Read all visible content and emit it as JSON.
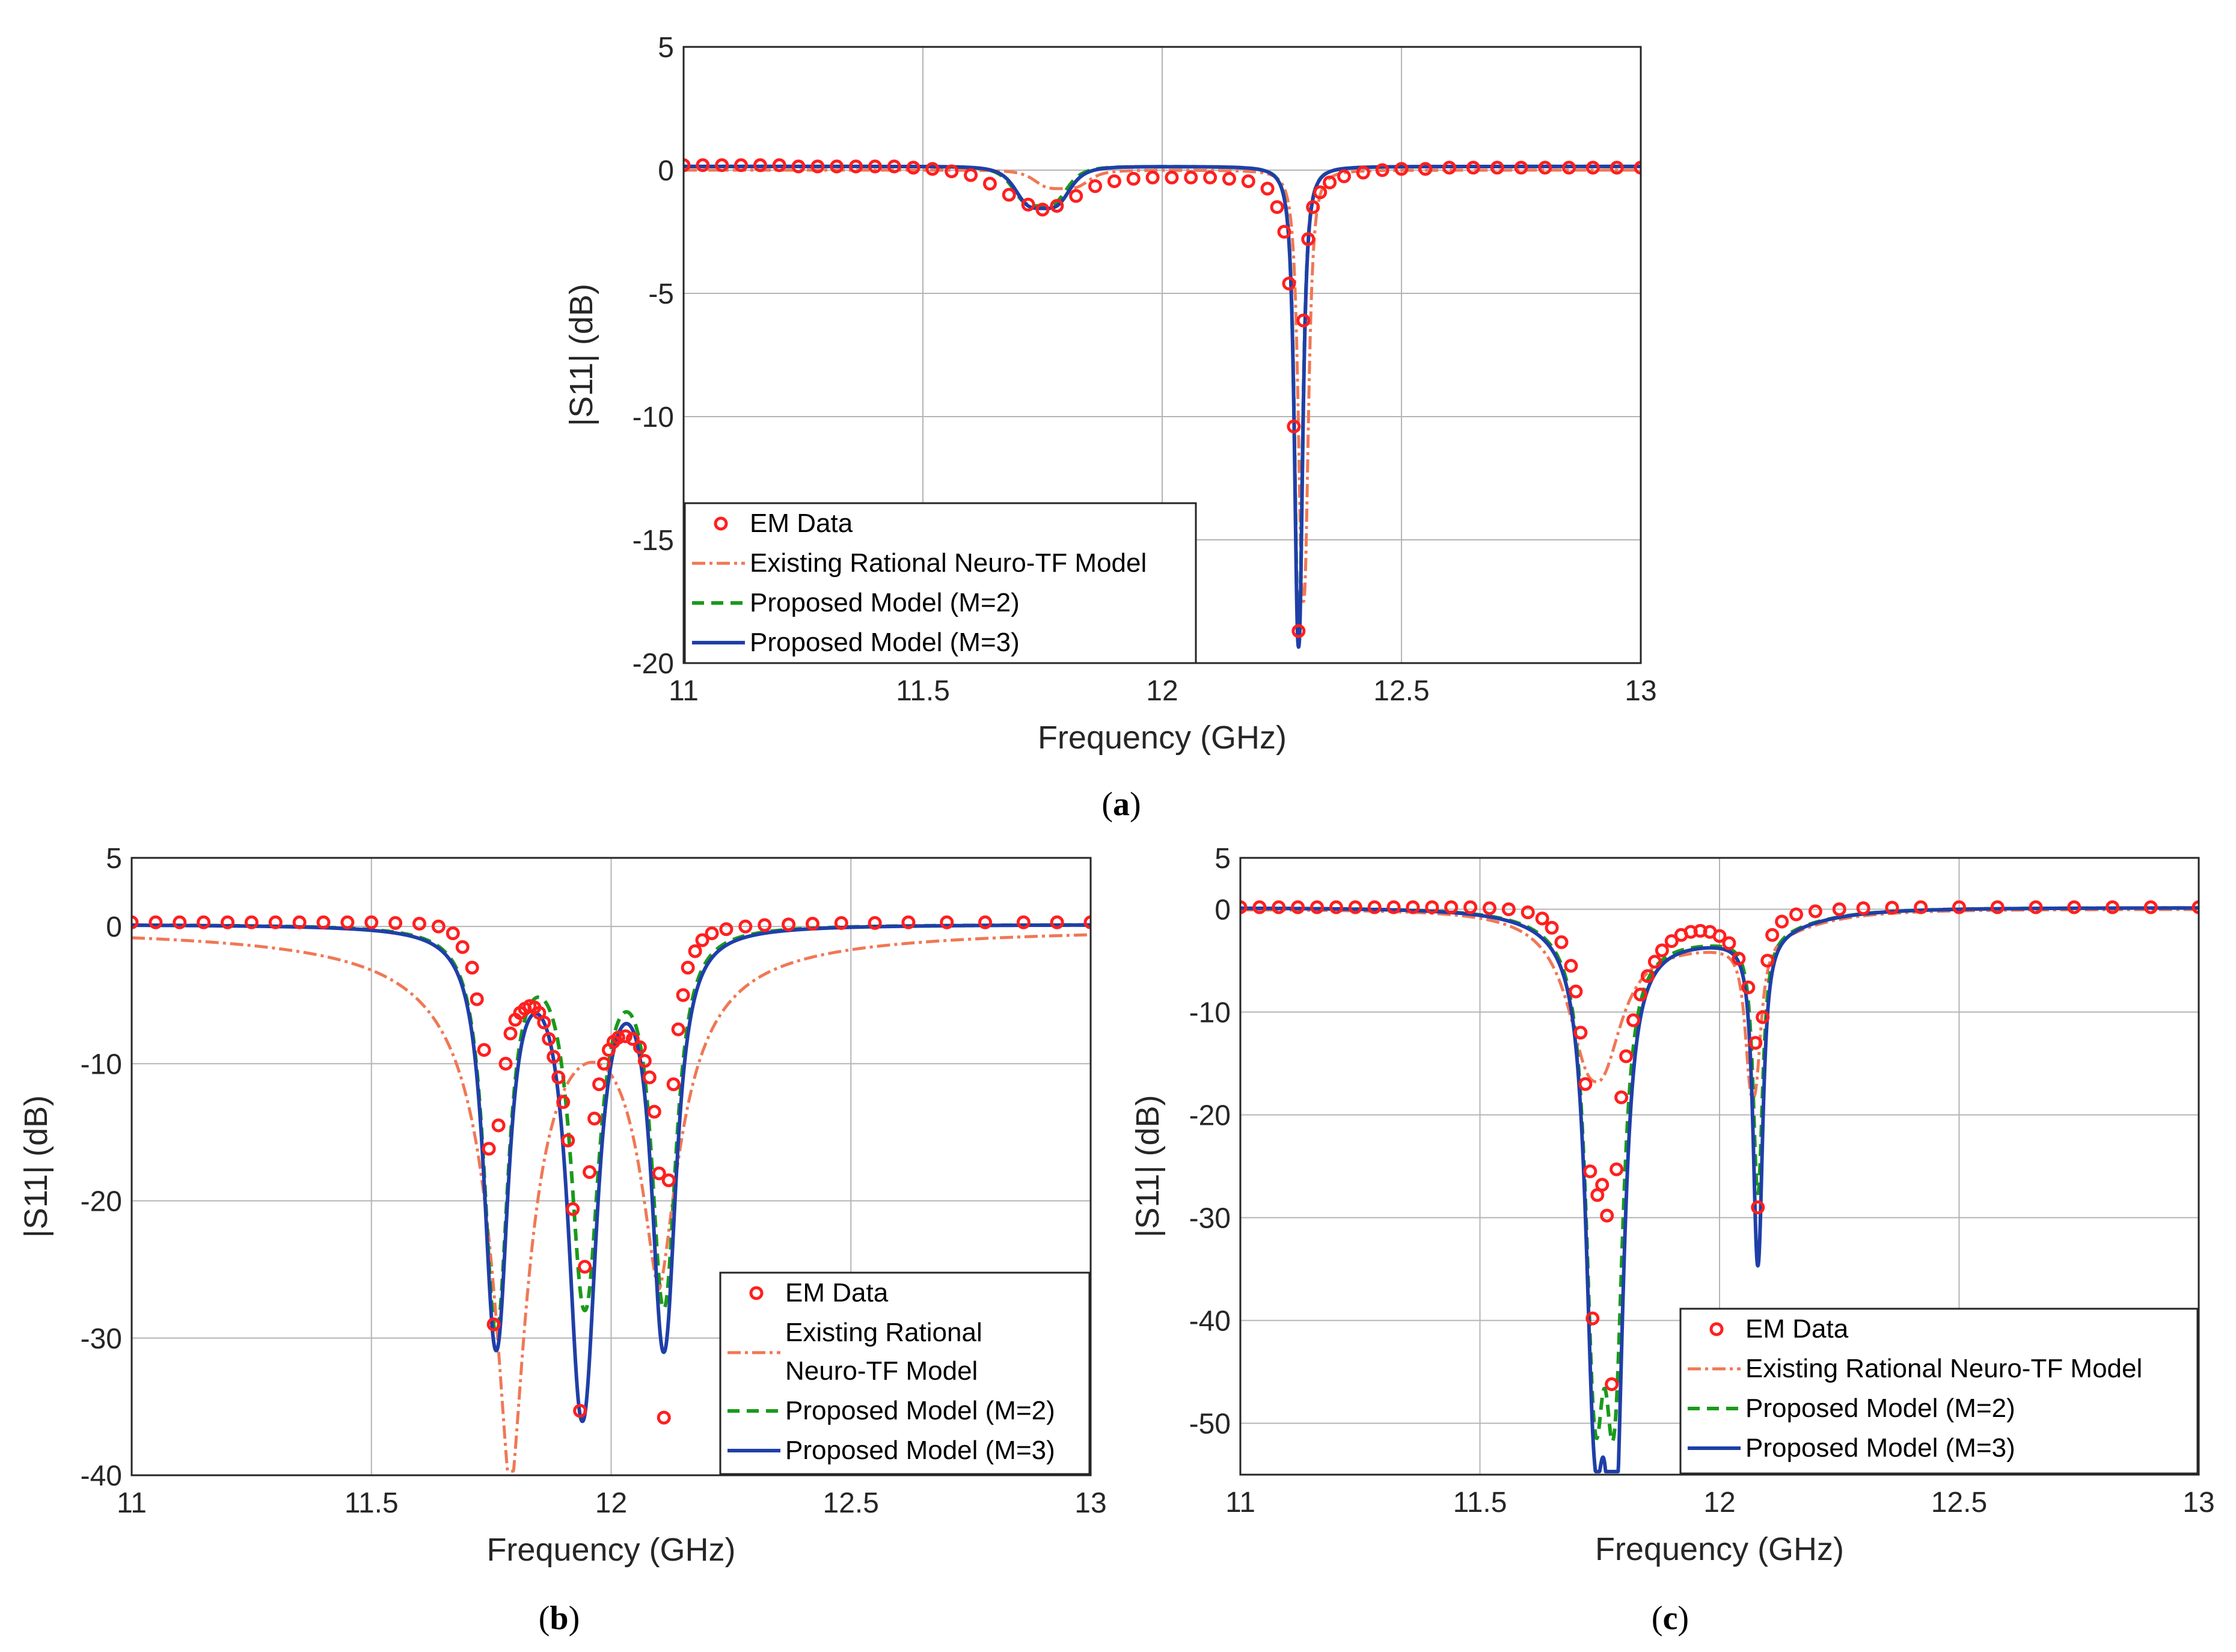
{
  "colors": {
    "em": "#ff1f1f",
    "existing": "#f07855",
    "m2": "#1a9a1a",
    "m3": "#1f3fa8",
    "grid": "#b4b4b4",
    "axis": "#262626"
  },
  "chart_data": [
    {
      "id": "a",
      "type": "line",
      "caption": "(a)",
      "xlabel": "Frequency (GHz)",
      "ylabel": "|S11| (dB)",
      "xlim": [
        11,
        13
      ],
      "ylim": [
        -20,
        5
      ],
      "xticks": [
        11,
        11.5,
        12,
        12.5,
        13
      ],
      "xtick_labels": [
        "11",
        "11.5",
        "12",
        "12.5",
        "13"
      ],
      "yticks": [
        -20,
        -15,
        -10,
        -5,
        0,
        5
      ],
      "ytick_labels": [
        "-20",
        "-15",
        "-10",
        "-5",
        "0",
        "5"
      ],
      "grid": true,
      "legend_position": "bottom-left",
      "legend": [
        {
          "key": "em",
          "lines": [
            "EM Data"
          ]
        },
        {
          "key": "existing",
          "lines": [
            "Existing Rational Neuro-TF Model"
          ]
        },
        {
          "key": "m2",
          "lines": [
            "Proposed Model (M=2)"
          ]
        },
        {
          "key": "m3",
          "lines": [
            "Proposed Model (M=3)"
          ]
        }
      ],
      "dips": {
        "true": [
          {
            "f": 11.75,
            "depth": -1.7,
            "w": 0.06,
            "p": 2
          },
          {
            "f": 12.285,
            "depth": -19.2,
            "w": 0.01,
            "p": 1.2
          }
        ],
        "existing": [
          {
            "f": 11.79,
            "depth": -0.75,
            "w": 0.06,
            "p": 2
          },
          {
            "f": 12.295,
            "depth": -17.5,
            "w": 0.012,
            "p": 1.3
          }
        ],
        "m2": [
          {
            "f": 11.745,
            "depth": -1.6,
            "w": 0.06,
            "p": 2
          },
          {
            "f": 12.285,
            "depth": -19.0,
            "w": 0.01,
            "p": 1.2
          }
        ],
        "m3": [
          {
            "f": 11.75,
            "depth": -1.7,
            "w": 0.06,
            "p": 2
          },
          {
            "f": 12.285,
            "depth": -19.5,
            "w": 0.01,
            "p": 1.2
          }
        ]
      },
      "em_points": [
        [
          11.0,
          0.2
        ],
        [
          11.04,
          0.2
        ],
        [
          11.08,
          0.2
        ],
        [
          11.12,
          0.2
        ],
        [
          11.16,
          0.2
        ],
        [
          11.2,
          0.2
        ],
        [
          11.24,
          0.15
        ],
        [
          11.28,
          0.15
        ],
        [
          11.32,
          0.15
        ],
        [
          11.36,
          0.15
        ],
        [
          11.4,
          0.15
        ],
        [
          11.44,
          0.15
        ],
        [
          11.48,
          0.1
        ],
        [
          11.52,
          0.05
        ],
        [
          11.56,
          -0.05
        ],
        [
          11.6,
          -0.2
        ],
        [
          11.64,
          -0.55
        ],
        [
          11.68,
          -1.0
        ],
        [
          11.72,
          -1.4
        ],
        [
          11.75,
          -1.6
        ],
        [
          11.78,
          -1.45
        ],
        [
          11.82,
          -1.05
        ],
        [
          11.86,
          -0.65
        ],
        [
          11.9,
          -0.45
        ],
        [
          11.94,
          -0.35
        ],
        [
          11.98,
          -0.3
        ],
        [
          12.02,
          -0.3
        ],
        [
          12.06,
          -0.3
        ],
        [
          12.1,
          -0.3
        ],
        [
          12.14,
          -0.35
        ],
        [
          12.18,
          -0.45
        ],
        [
          12.22,
          -0.75
        ],
        [
          12.24,
          -1.5
        ],
        [
          12.255,
          -2.5
        ],
        [
          12.265,
          -4.6
        ],
        [
          12.275,
          -10.4
        ],
        [
          12.285,
          -18.7
        ],
        [
          12.295,
          -6.1
        ],
        [
          12.305,
          -2.8
        ],
        [
          12.315,
          -1.5
        ],
        [
          12.33,
          -0.9
        ],
        [
          12.35,
          -0.5
        ],
        [
          12.38,
          -0.25
        ],
        [
          12.42,
          -0.1
        ],
        [
          12.46,
          0.0
        ],
        [
          12.5,
          0.05
        ],
        [
          12.55,
          0.05
        ],
        [
          12.6,
          0.1
        ],
        [
          12.65,
          0.1
        ],
        [
          12.7,
          0.1
        ],
        [
          12.75,
          0.1
        ],
        [
          12.8,
          0.1
        ],
        [
          12.85,
          0.1
        ],
        [
          12.9,
          0.1
        ],
        [
          12.95,
          0.1
        ],
        [
          13.0,
          0.1
        ]
      ]
    },
    {
      "id": "b",
      "type": "line",
      "caption": "(b)",
      "xlabel": "Frequency (GHz)",
      "ylabel": "|S11| (dB)",
      "xlim": [
        11,
        13
      ],
      "ylim": [
        -40,
        5
      ],
      "xticks": [
        11,
        11.5,
        12,
        12.5,
        13
      ],
      "xtick_labels": [
        "11",
        "11.5",
        "12",
        "12.5",
        "13"
      ],
      "yticks": [
        -40,
        -30,
        -20,
        -10,
        0,
        5
      ],
      "ytick_labels": [
        "-40",
        "-30",
        "-20",
        "-10",
        "0",
        "5"
      ],
      "grid": true,
      "legend_position": "bottom-right",
      "legend": [
        {
          "key": "em",
          "lines": [
            "EM Data"
          ]
        },
        {
          "key": "existing",
          "lines": [
            "Existing Rational",
            "Neuro-TF Model"
          ]
        },
        {
          "key": "m2",
          "lines": [
            "Proposed Model (M=2)"
          ]
        },
        {
          "key": "m3",
          "lines": [
            "Proposed Model (M=3)"
          ]
        }
      ],
      "dips": {
        "true": [
          {
            "f": 11.76,
            "depth": -30,
            "w": 0.03,
            "p": 1.1
          },
          {
            "f": 11.94,
            "depth": -33,
            "w": 0.035,
            "p": 1.1
          },
          {
            "f": 12.11,
            "depth": -28,
            "w": 0.03,
            "p": 1.1
          }
        ],
        "existing": [
          {
            "f": 11.79,
            "depth": -40,
            "w": 0.05,
            "p": 0.75
          },
          {
            "f": 12.1,
            "depth": -24,
            "w": 0.055,
            "p": 0.8
          }
        ],
        "m2": [
          {
            "f": 11.76,
            "depth": -29,
            "w": 0.03,
            "p": 1.1
          },
          {
            "f": 11.945,
            "depth": -27,
            "w": 0.035,
            "p": 1.1
          },
          {
            "f": 12.11,
            "depth": -27,
            "w": 0.03,
            "p": 1.1
          }
        ],
        "m3": [
          {
            "f": 11.76,
            "depth": -30,
            "w": 0.03,
            "p": 1.1
          },
          {
            "f": 11.94,
            "depth": -35,
            "w": 0.035,
            "p": 1.1
          },
          {
            "f": 12.11,
            "depth": -30,
            "w": 0.03,
            "p": 1.1
          }
        ]
      },
      "em_points": [
        [
          11.0,
          0.3
        ],
        [
          11.05,
          0.3
        ],
        [
          11.1,
          0.3
        ],
        [
          11.15,
          0.3
        ],
        [
          11.2,
          0.3
        ],
        [
          11.25,
          0.3
        ],
        [
          11.3,
          0.3
        ],
        [
          11.35,
          0.3
        ],
        [
          11.4,
          0.3
        ],
        [
          11.45,
          0.3
        ],
        [
          11.5,
          0.3
        ],
        [
          11.55,
          0.25
        ],
        [
          11.6,
          0.2
        ],
        [
          11.64,
          0.0
        ],
        [
          11.67,
          -0.5
        ],
        [
          11.69,
          -1.5
        ],
        [
          11.71,
          -3.0
        ],
        [
          11.72,
          -5.3
        ],
        [
          11.735,
          -9.0
        ],
        [
          11.745,
          -16.2
        ],
        [
          11.755,
          -29.0
        ],
        [
          11.765,
          -14.5
        ],
        [
          11.78,
          -10.0
        ],
        [
          11.79,
          -7.8
        ],
        [
          11.8,
          -6.8
        ],
        [
          11.81,
          -6.3
        ],
        [
          11.82,
          -6.0
        ],
        [
          11.83,
          -5.8
        ],
        [
          11.84,
          -5.9
        ],
        [
          11.85,
          -6.3
        ],
        [
          11.86,
          -7.0
        ],
        [
          11.87,
          -8.2
        ],
        [
          11.88,
          -9.5
        ],
        [
          11.89,
          -11.0
        ],
        [
          11.9,
          -12.8
        ],
        [
          11.91,
          -15.6
        ],
        [
          11.92,
          -20.6
        ],
        [
          11.935,
          -35.3
        ],
        [
          11.945,
          -24.8
        ],
        [
          11.955,
          -17.9
        ],
        [
          11.965,
          -14.0
        ],
        [
          11.975,
          -11.5
        ],
        [
          11.985,
          -10.0
        ],
        [
          11.995,
          -9.0
        ],
        [
          12.005,
          -8.4
        ],
        [
          12.015,
          -8.1
        ],
        [
          12.03,
          -8.0
        ],
        [
          12.045,
          -8.2
        ],
        [
          12.06,
          -8.8
        ],
        [
          12.07,
          -9.8
        ],
        [
          12.08,
          -11.0
        ],
        [
          12.09,
          -13.5
        ],
        [
          12.1,
          -18.0
        ],
        [
          12.11,
          -35.8
        ],
        [
          12.12,
          -18.5
        ],
        [
          12.13,
          -11.5
        ],
        [
          12.14,
          -7.5
        ],
        [
          12.15,
          -5.0
        ],
        [
          12.16,
          -3.0
        ],
        [
          12.175,
          -1.8
        ],
        [
          12.19,
          -1.0
        ],
        [
          12.21,
          -0.5
        ],
        [
          12.24,
          -0.2
        ],
        [
          12.28,
          0.0
        ],
        [
          12.32,
          0.1
        ],
        [
          12.37,
          0.15
        ],
        [
          12.42,
          0.2
        ],
        [
          12.48,
          0.25
        ],
        [
          12.55,
          0.25
        ],
        [
          12.62,
          0.3
        ],
        [
          12.7,
          0.3
        ],
        [
          12.78,
          0.3
        ],
        [
          12.86,
          0.3
        ],
        [
          12.93,
          0.3
        ],
        [
          13.0,
          0.3
        ]
      ]
    },
    {
      "id": "c",
      "type": "line",
      "caption": "(c)",
      "xlabel": "Frequency (GHz)",
      "ylabel": "|S11| (dB)",
      "xlim": [
        11,
        13
      ],
      "ylim": [
        -55,
        5
      ],
      "xticks": [
        11,
        11.5,
        12,
        12.5,
        13
      ],
      "xtick_labels": [
        "11",
        "11.5",
        "12",
        "12.5",
        "13"
      ],
      "yticks": [
        -50,
        -40,
        -30,
        -20,
        -10,
        0,
        5
      ],
      "ytick_labels": [
        "-50",
        "-40",
        "-30",
        "-20",
        "-10",
        "0",
        "5"
      ],
      "grid": true,
      "legend_position": "bottom-right",
      "legend": [
        {
          "key": "em",
          "lines": [
            "EM Data"
          ]
        },
        {
          "key": "existing",
          "lines": [
            "Existing Rational Neuro-TF Model"
          ]
        },
        {
          "key": "m2",
          "lines": [
            "Proposed Model (M=2)"
          ]
        },
        {
          "key": "m3",
          "lines": [
            "Proposed Model (M=3)"
          ]
        }
      ],
      "dips": {
        "true": [
          {
            "f": 11.74,
            "depth": -42,
            "w": 0.022,
            "p": 1.1
          },
          {
            "f": 11.78,
            "depth": -52,
            "w": 0.022,
            "p": 1.1
          },
          {
            "f": 12.08,
            "depth": -32,
            "w": 0.012,
            "p": 1.1
          },
          {
            "f": 11.92,
            "depth": -3.0,
            "w": 0.25,
            "p": 2
          }
        ],
        "existing": [
          {
            "f": 11.74,
            "depth": -14,
            "w": 0.06,
            "p": 1.2
          },
          {
            "f": 12.07,
            "depth": -15,
            "w": 0.018,
            "p": 1.3
          },
          {
            "f": 11.92,
            "depth": -3.5,
            "w": 0.25,
            "p": 2
          }
        ],
        "m2": [
          {
            "f": 11.74,
            "depth": -40,
            "w": 0.022,
            "p": 1.1
          },
          {
            "f": 11.78,
            "depth": -40,
            "w": 0.022,
            "p": 1.1
          },
          {
            "f": 12.08,
            "depth": -25,
            "w": 0.012,
            "p": 1.1
          },
          {
            "f": 11.92,
            "depth": -3.0,
            "w": 0.25,
            "p": 2
          }
        ],
        "m3": [
          {
            "f": 11.74,
            "depth": -41,
            "w": 0.022,
            "p": 1.1
          },
          {
            "f": 11.78,
            "depth": -52,
            "w": 0.022,
            "p": 1.1
          },
          {
            "f": 12.08,
            "depth": -32,
            "w": 0.012,
            "p": 1.1
          },
          {
            "f": 11.92,
            "depth": -3.0,
            "w": 0.25,
            "p": 2
          }
        ]
      },
      "em_points": [
        [
          11.0,
          0.2
        ],
        [
          11.04,
          0.2
        ],
        [
          11.08,
          0.2
        ],
        [
          11.12,
          0.2
        ],
        [
          11.16,
          0.2
        ],
        [
          11.2,
          0.2
        ],
        [
          11.24,
          0.2
        ],
        [
          11.28,
          0.2
        ],
        [
          11.32,
          0.2
        ],
        [
          11.36,
          0.2
        ],
        [
          11.4,
          0.2
        ],
        [
          11.44,
          0.2
        ],
        [
          11.48,
          0.2
        ],
        [
          11.52,
          0.1
        ],
        [
          11.56,
          0.0
        ],
        [
          11.6,
          -0.3
        ],
        [
          11.63,
          -0.9
        ],
        [
          11.65,
          -1.8
        ],
        [
          11.67,
          -3.2
        ],
        [
          11.69,
          -5.5
        ],
        [
          11.7,
          -8.0
        ],
        [
          11.71,
          -12.0
        ],
        [
          11.72,
          -17.0
        ],
        [
          11.73,
          -25.5
        ],
        [
          11.735,
          -39.8
        ],
        [
          11.745,
          -27.8
        ],
        [
          11.755,
          -26.8
        ],
        [
          11.765,
          -29.8
        ],
        [
          11.775,
          -46.2
        ],
        [
          11.785,
          -25.3
        ],
        [
          11.795,
          -18.3
        ],
        [
          11.805,
          -14.3
        ],
        [
          11.82,
          -10.8
        ],
        [
          11.835,
          -8.3
        ],
        [
          11.85,
          -6.5
        ],
        [
          11.865,
          -5.1
        ],
        [
          11.88,
          -4.0
        ],
        [
          11.9,
          -3.1
        ],
        [
          11.92,
          -2.5
        ],
        [
          11.94,
          -2.2
        ],
        [
          11.96,
          -2.1
        ],
        [
          11.98,
          -2.2
        ],
        [
          12.0,
          -2.6
        ],
        [
          12.02,
          -3.3
        ],
        [
          12.04,
          -4.8
        ],
        [
          12.06,
          -7.6
        ],
        [
          12.075,
          -13.0
        ],
        [
          12.08,
          -29.0
        ],
        [
          12.09,
          -10.5
        ],
        [
          12.1,
          -5.0
        ],
        [
          12.11,
          -2.5
        ],
        [
          12.13,
          -1.2
        ],
        [
          12.16,
          -0.5
        ],
        [
          12.2,
          -0.2
        ],
        [
          12.25,
          0.0
        ],
        [
          12.3,
          0.1
        ],
        [
          12.36,
          0.15
        ],
        [
          12.42,
          0.2
        ],
        [
          12.5,
          0.2
        ],
        [
          12.58,
          0.2
        ],
        [
          12.66,
          0.2
        ],
        [
          12.74,
          0.2
        ],
        [
          12.82,
          0.2
        ],
        [
          12.9,
          0.2
        ],
        [
          13.0,
          0.2
        ]
      ]
    }
  ]
}
